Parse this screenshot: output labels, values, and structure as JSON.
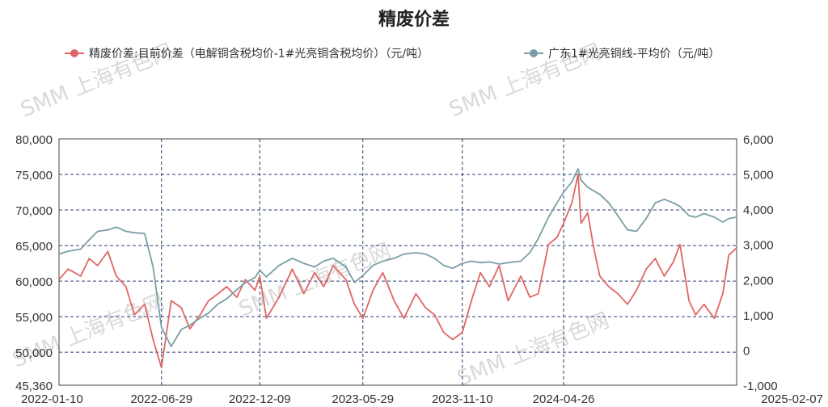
{
  "chart_data": {
    "type": "line",
    "title": "精废价差",
    "watermark": "SMM 上海有色网",
    "legend_position": "top",
    "grid": true,
    "x_ticks": [
      "2022-01-10",
      "2022-06-29",
      "2022-12-09",
      "2023-05-29",
      "2023-11-10",
      "2024-04-26",
      "2025-02-07"
    ],
    "x_range": [
      "2022-01-10",
      "2025-02-07"
    ],
    "left_axis": {
      "ticks": [
        "80,000",
        "75,000",
        "70,000",
        "65,000",
        "60,000",
        "55,000",
        "50,000",
        "45,360"
      ],
      "ylim": [
        45360,
        80000
      ]
    },
    "right_axis": {
      "ticks": [
        "6,000",
        "5,000",
        "4,000",
        "3,000",
        "2,000",
        "1,000",
        "0",
        "-1,000"
      ],
      "ylim": [
        -1000,
        6000
      ]
    },
    "series": [
      {
        "name": "精废价差:目前价差（电解铜含税均价-1#光亮铜含税均价）（元/吨）",
        "axis": "right",
        "color": "#e06666",
        "points": [
          [
            "2022-01-10",
            2000
          ],
          [
            "2022-01-25",
            2300
          ],
          [
            "2022-02-15",
            2100
          ],
          [
            "2022-03-01",
            2600
          ],
          [
            "2022-03-15",
            2400
          ],
          [
            "2022-04-01",
            2800
          ],
          [
            "2022-04-15",
            2100
          ],
          [
            "2022-05-01",
            1800
          ],
          [
            "2022-05-15",
            1000
          ],
          [
            "2022-06-01",
            1300
          ],
          [
            "2022-06-15",
            300
          ],
          [
            "2022-06-29",
            -500
          ],
          [
            "2022-07-15",
            1400
          ],
          [
            "2022-08-01",
            1200
          ],
          [
            "2022-08-15",
            600
          ],
          [
            "2022-09-01",
            1000
          ],
          [
            "2022-09-15",
            1400
          ],
          [
            "2022-10-01",
            1600
          ],
          [
            "2022-10-15",
            1800
          ],
          [
            "2022-11-01",
            1500
          ],
          [
            "2022-11-15",
            2000
          ],
          [
            "2022-12-01",
            1700
          ],
          [
            "2022-12-09",
            2100
          ],
          [
            "2022-12-20",
            900
          ],
          [
            "2023-01-10",
            1500
          ],
          [
            "2023-02-01",
            2300
          ],
          [
            "2023-02-20",
            1600
          ],
          [
            "2023-03-10",
            2200
          ],
          [
            "2023-03-25",
            1800
          ],
          [
            "2023-04-10",
            2400
          ],
          [
            "2023-05-01",
            2000
          ],
          [
            "2023-05-15",
            1300
          ],
          [
            "2023-05-29",
            900
          ],
          [
            "2023-06-15",
            1700
          ],
          [
            "2023-07-01",
            2200
          ],
          [
            "2023-07-20",
            1400
          ],
          [
            "2023-08-05",
            900
          ],
          [
            "2023-08-25",
            1600
          ],
          [
            "2023-09-10",
            1200
          ],
          [
            "2023-09-25",
            1000
          ],
          [
            "2023-10-10",
            500
          ],
          [
            "2023-10-25",
            300
          ],
          [
            "2023-11-10",
            500
          ],
          [
            "2023-11-25",
            1400
          ],
          [
            "2023-12-10",
            2200
          ],
          [
            "2023-12-25",
            1800
          ],
          [
            "2024-01-10",
            2400
          ],
          [
            "2024-01-25",
            1400
          ],
          [
            "2024-02-15",
            2100
          ],
          [
            "2024-03-01",
            1500
          ],
          [
            "2024-03-15",
            1600
          ],
          [
            "2024-04-01",
            3000
          ],
          [
            "2024-04-15",
            3200
          ],
          [
            "2024-04-26",
            3600
          ],
          [
            "2024-05-10",
            4200
          ],
          [
            "2024-05-20",
            5000
          ],
          [
            "2024-05-25",
            3600
          ],
          [
            "2024-06-05",
            3900
          ],
          [
            "2024-06-15",
            2900
          ],
          [
            "2024-06-25",
            2100
          ],
          [
            "2024-07-10",
            1800
          ],
          [
            "2024-07-25",
            1600
          ],
          [
            "2024-08-10",
            1300
          ],
          [
            "2024-08-25",
            1700
          ],
          [
            "2024-09-10",
            2300
          ],
          [
            "2024-09-25",
            2600
          ],
          [
            "2024-10-10",
            2100
          ],
          [
            "2024-10-25",
            2500
          ],
          [
            "2024-11-05",
            3000
          ],
          [
            "2024-11-20",
            1400
          ],
          [
            "2024-12-01",
            1000
          ],
          [
            "2024-12-15",
            1300
          ],
          [
            "2025-01-01",
            900
          ],
          [
            "2025-01-15",
            1600
          ],
          [
            "2025-01-25",
            2700
          ],
          [
            "2025-02-07",
            2900
          ]
        ]
      },
      {
        "name": "广东1#光亮铜线-平均价（元/吨）",
        "axis": "left",
        "color": "#7b9ea6",
        "points": [
          [
            "2022-01-10",
            63800
          ],
          [
            "2022-01-25",
            64200
          ],
          [
            "2022-02-15",
            64500
          ],
          [
            "2022-03-01",
            65800
          ],
          [
            "2022-03-15",
            67000
          ],
          [
            "2022-04-01",
            67200
          ],
          [
            "2022-04-15",
            67600
          ],
          [
            "2022-05-01",
            67000
          ],
          [
            "2022-05-15",
            66800
          ],
          [
            "2022-06-01",
            66700
          ],
          [
            "2022-06-15",
            62000
          ],
          [
            "2022-06-29",
            53500
          ],
          [
            "2022-07-15",
            50800
          ],
          [
            "2022-08-01",
            53200
          ],
          [
            "2022-08-15",
            53800
          ],
          [
            "2022-09-01",
            54800
          ],
          [
            "2022-09-15",
            55500
          ],
          [
            "2022-10-01",
            56800
          ],
          [
            "2022-10-15",
            57500
          ],
          [
            "2022-11-01",
            58800
          ],
          [
            "2022-11-15",
            59800
          ],
          [
            "2022-12-01",
            60500
          ],
          [
            "2022-12-09",
            61500
          ],
          [
            "2022-12-20",
            60600
          ],
          [
            "2023-01-10",
            62200
          ],
          [
            "2023-02-01",
            63200
          ],
          [
            "2023-02-20",
            62500
          ],
          [
            "2023-03-10",
            62000
          ],
          [
            "2023-03-25",
            62800
          ],
          [
            "2023-04-10",
            63200
          ],
          [
            "2023-05-01",
            62000
          ],
          [
            "2023-05-15",
            59800
          ],
          [
            "2023-05-29",
            60800
          ],
          [
            "2023-06-15",
            62200
          ],
          [
            "2023-07-01",
            62800
          ],
          [
            "2023-07-20",
            63200
          ],
          [
            "2023-08-05",
            63800
          ],
          [
            "2023-08-25",
            64000
          ],
          [
            "2023-09-10",
            63800
          ],
          [
            "2023-09-25",
            63200
          ],
          [
            "2023-10-10",
            62200
          ],
          [
            "2023-10-25",
            61800
          ],
          [
            "2023-11-10",
            62500
          ],
          [
            "2023-11-25",
            62800
          ],
          [
            "2023-12-10",
            62600
          ],
          [
            "2023-12-25",
            62700
          ],
          [
            "2024-01-10",
            62400
          ],
          [
            "2024-01-25",
            62600
          ],
          [
            "2024-02-15",
            62800
          ],
          [
            "2024-03-01",
            64000
          ],
          [
            "2024-03-15",
            66000
          ],
          [
            "2024-04-01",
            69000
          ],
          [
            "2024-04-15",
            71000
          ],
          [
            "2024-04-26",
            72500
          ],
          [
            "2024-05-10",
            74000
          ],
          [
            "2024-05-20",
            75800
          ],
          [
            "2024-05-25",
            74200
          ],
          [
            "2024-06-05",
            73200
          ],
          [
            "2024-06-15",
            72700
          ],
          [
            "2024-06-25",
            72200
          ],
          [
            "2024-07-10",
            71000
          ],
          [
            "2024-07-25",
            69200
          ],
          [
            "2024-08-10",
            67200
          ],
          [
            "2024-08-25",
            67000
          ],
          [
            "2024-09-10",
            68800
          ],
          [
            "2024-09-25",
            71000
          ],
          [
            "2024-10-10",
            71500
          ],
          [
            "2024-10-25",
            71000
          ],
          [
            "2024-11-05",
            70500
          ],
          [
            "2024-11-20",
            69200
          ],
          [
            "2024-12-01",
            69000
          ],
          [
            "2024-12-15",
            69500
          ],
          [
            "2025-01-01",
            69000
          ],
          [
            "2025-01-15",
            68300
          ],
          [
            "2025-01-25",
            68800
          ],
          [
            "2025-02-07",
            69000
          ]
        ]
      }
    ]
  }
}
